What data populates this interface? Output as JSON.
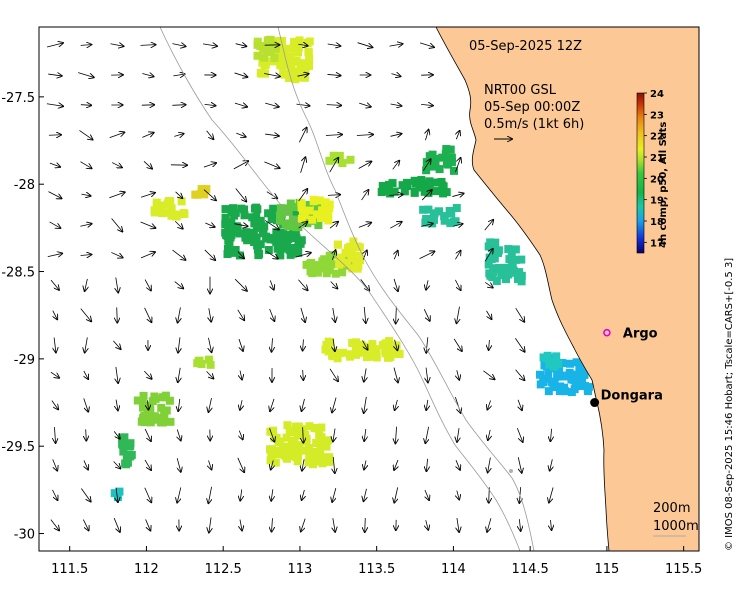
{
  "map": {
    "title": "05-Sep-2025 12Z",
    "current_product": {
      "line1": "NRT00 GSL",
      "line2": "05-Sep 00:00Z",
      "line3": "0.5m/s (1kt 6h)"
    },
    "x_ticks": [
      "111.5",
      "112",
      "112.5",
      "113",
      "113.5",
      "114",
      "114.5",
      "115",
      "115.5"
    ],
    "y_ticks": [
      "-27.5",
      "-28",
      "-28.5",
      "-29",
      "-29.5",
      "-30"
    ],
    "x_tick_values": [
      111.5,
      112,
      112.5,
      113,
      113.5,
      114,
      114.5,
      115,
      115.5
    ],
    "y_tick_values": [
      -27.5,
      -28,
      -28.5,
      -29,
      -29.5,
      -30
    ],
    "lon_range": [
      111.3,
      115.6
    ],
    "lat_range": [
      -30.1,
      -27.1
    ],
    "places": [
      {
        "name": "Argo",
        "lon": 115.0,
        "lat": -28.85,
        "marker": "magenta-circle"
      },
      {
        "name": "Dongara",
        "lon": 114.92,
        "lat": -29.25,
        "marker": "black-dot"
      }
    ],
    "isobath_labels": [
      "200m",
      "1000m"
    ],
    "land_color": "#fcc996",
    "colorbar": {
      "label": "4h comp, p50, All Sats",
      "ticks": [
        "24",
        "23",
        "22",
        "21",
        "20",
        "19",
        "18",
        "17"
      ],
      "min": 16.5,
      "max": 24,
      "colors": [
        "#08006f",
        "#1430d8",
        "#1aa0ea",
        "#18c8a8",
        "#14b44a",
        "#3cc83c",
        "#a8e030",
        "#e8f020",
        "#f0c020",
        "#e88010",
        "#c83408",
        "#8a1404"
      ]
    },
    "credit": "© IMOS 08-Sep-2025 15:46 Hobart; Tscale=CARS+[-0.5 3]"
  }
}
